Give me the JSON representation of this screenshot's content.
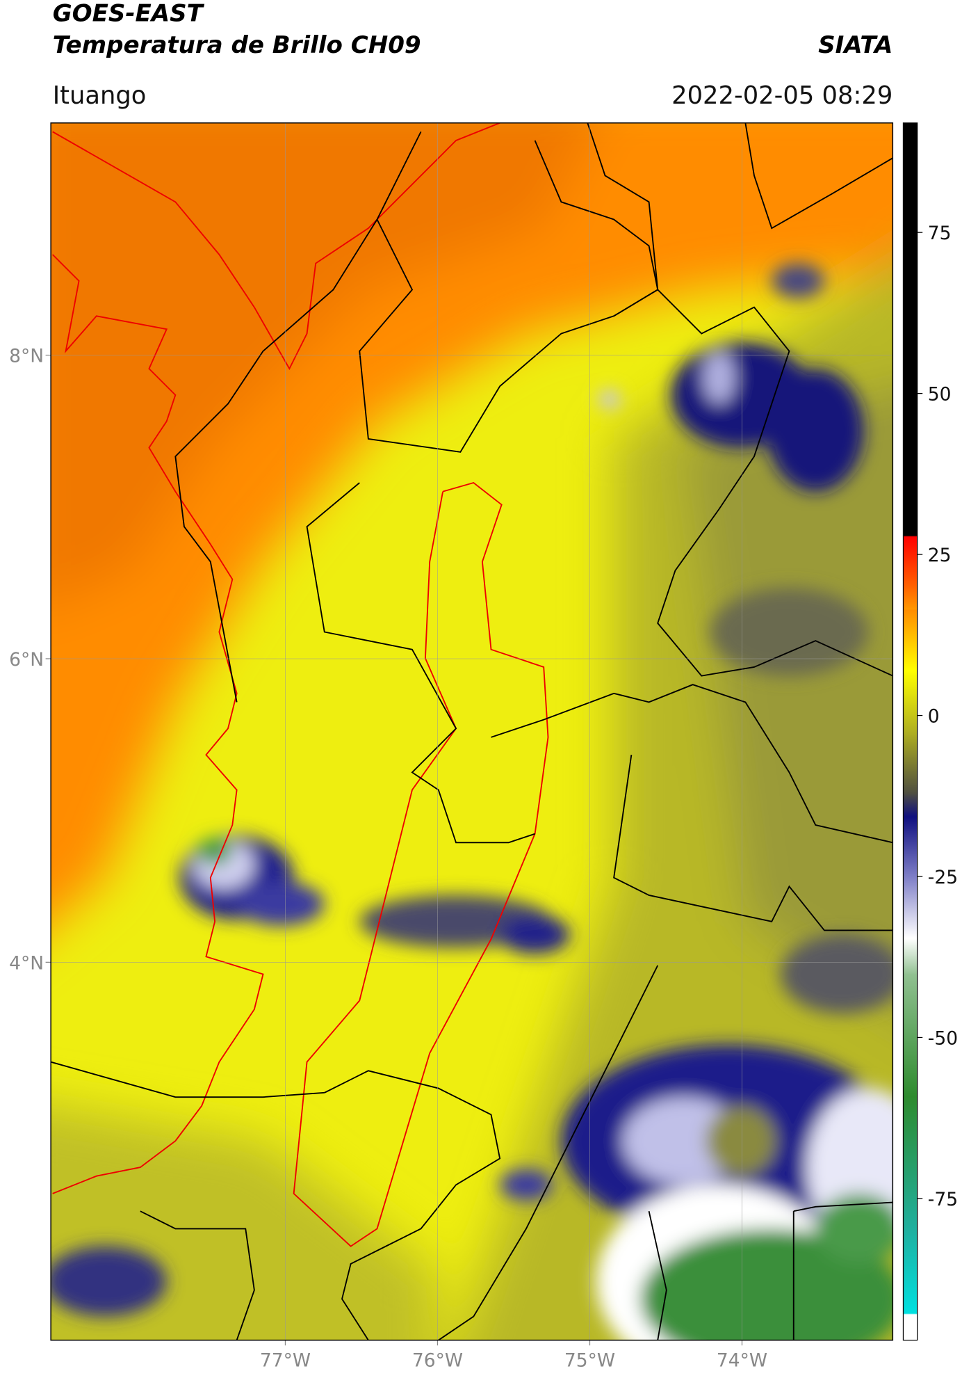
{
  "header": {
    "title": "GOES-EAST",
    "subtitle": "Temperatura de Brillo CH09",
    "agency": "SIATA",
    "location": "Ituango",
    "timestamp": "2022-02-05 08:29"
  },
  "map": {
    "xlim": [
      -78.54,
      -73.01
    ],
    "ylim": [
      1.51,
      9.53
    ],
    "xticks": [
      {
        "value": -77,
        "label": "77°W"
      },
      {
        "value": -76,
        "label": "76°W"
      },
      {
        "value": -75,
        "label": "75°W"
      },
      {
        "value": -74,
        "label": "74°W"
      }
    ],
    "yticks": [
      {
        "value": 8,
        "label": "8°N"
      },
      {
        "value": 6,
        "label": "6°N"
      },
      {
        "value": 4,
        "label": "4°N"
      }
    ]
  },
  "colorbar": {
    "lim": [
      -97,
      92
    ],
    "ticks": [
      75,
      50,
      25,
      0,
      -25,
      -50,
      -75
    ]
  }
}
